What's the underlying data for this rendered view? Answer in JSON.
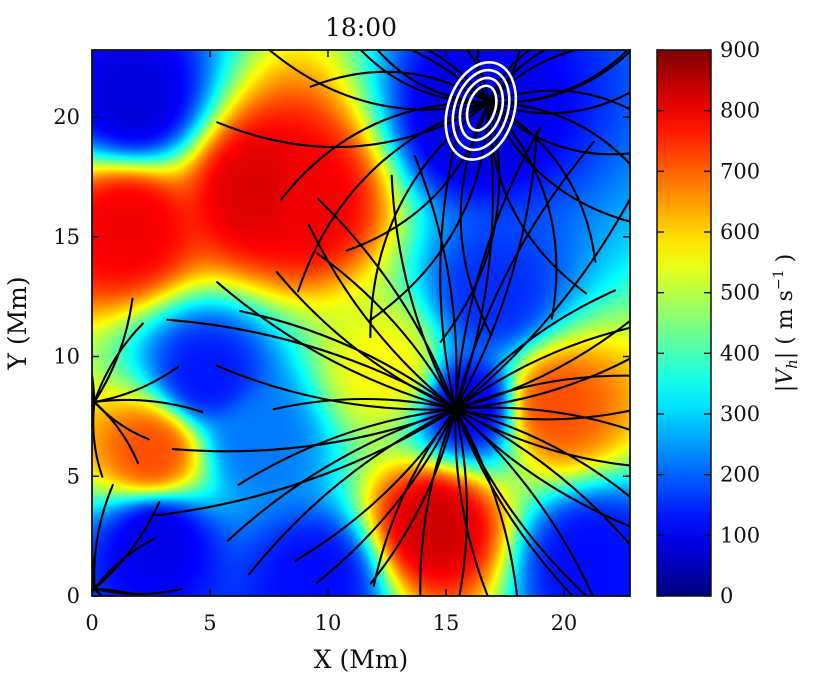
{
  "chart_data": {
    "type": "heatmap",
    "title": "18:00",
    "xlabel": "X (Mm)",
    "ylabel": "Y (Mm)",
    "xlim": [
      0,
      22.8
    ],
    "ylim": [
      0,
      22.8
    ],
    "x_ticks": [
      0,
      5,
      10,
      15,
      20
    ],
    "y_ticks": [
      0,
      5,
      10,
      15,
      20
    ],
    "colorbar": {
      "label": "|V_h| ( m s^-1 )",
      "label_parts": {
        "v": "V",
        "sub": "h",
        "unit_m": "m",
        "unit_s": "s",
        "exp": "−1"
      },
      "range": [
        0,
        900
      ],
      "ticks": [
        0,
        100,
        200,
        300,
        400,
        500,
        600,
        700,
        800,
        900
      ],
      "colormap": "jet",
      "colormap_colors": [
        "#7f0000",
        "#ff0000",
        "#ffff00",
        "#00ffff",
        "#0000ff",
        "#00007f"
      ]
    },
    "speed_field": [
      {
        "x": 1.8,
        "y": 20.7,
        "value": 80
      },
      {
        "x": 2.7,
        "y": 2.5,
        "value": 90
      },
      {
        "x": 4.8,
        "y": 9.2,
        "value": 130
      },
      {
        "x": 7.0,
        "y": 6.5,
        "value": 220
      },
      {
        "x": 16.0,
        "y": 19.8,
        "value": 80
      },
      {
        "x": 17.0,
        "y": 12.5,
        "value": 150
      },
      {
        "x": 16.0,
        "y": 8.0,
        "value": 100
      },
      {
        "x": 9.5,
        "y": 0.8,
        "value": 120
      },
      {
        "x": 21.0,
        "y": 1.5,
        "value": 120
      },
      {
        "x": 1.5,
        "y": 15.5,
        "value": 800
      },
      {
        "x": 7.0,
        "y": 17.0,
        "value": 820
      },
      {
        "x": 9.0,
        "y": 16.5,
        "value": 800
      },
      {
        "x": 2.5,
        "y": 6.0,
        "value": 720
      },
      {
        "x": 14.5,
        "y": 3.0,
        "value": 830
      },
      {
        "x": 19.5,
        "y": 8.0,
        "value": 720
      },
      {
        "x": 12.5,
        "y": 9.5,
        "value": 560
      }
    ],
    "streamline_sinks": [
      {
        "x": 15.4,
        "y": 7.8
      },
      {
        "x": 16.8,
        "y": 20.6
      },
      {
        "x": 0.1,
        "y": 8.1
      },
      {
        "x": 0.1,
        "y": 0.3
      }
    ],
    "contour": {
      "color": "#ffffff",
      "center": {
        "x": 16.5,
        "y": 20.6
      },
      "levels": 4
    },
    "grid": false,
    "legend": "none"
  }
}
